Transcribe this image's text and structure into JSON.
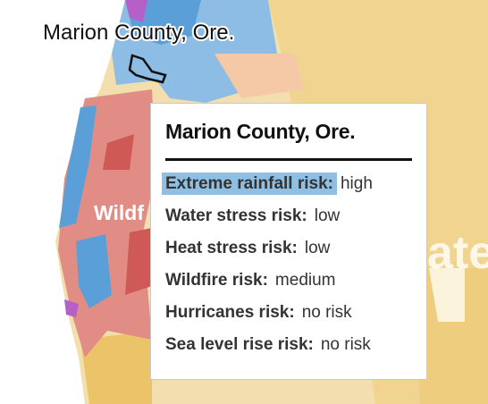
{
  "map_label": "Marion County, Ore.",
  "background_labels": [
    "Wildf",
    "ater"
  ],
  "tooltip": {
    "title": "Marion County, Ore.",
    "rows": [
      {
        "label": "Extreme rainfall risk:",
        "value": "high",
        "highlighted": true
      },
      {
        "label": "Water stress risk:",
        "value": "low",
        "highlighted": false
      },
      {
        "label": "Heat stress risk:",
        "value": "low",
        "highlighted": false
      },
      {
        "label": "Wildfire risk:",
        "value": "medium",
        "highlighted": false
      },
      {
        "label": "Hurricanes risk:",
        "value": "no risk",
        "highlighted": false
      },
      {
        "label": "Sea level rise risk:",
        "value": "no risk",
        "highlighted": false
      }
    ]
  }
}
